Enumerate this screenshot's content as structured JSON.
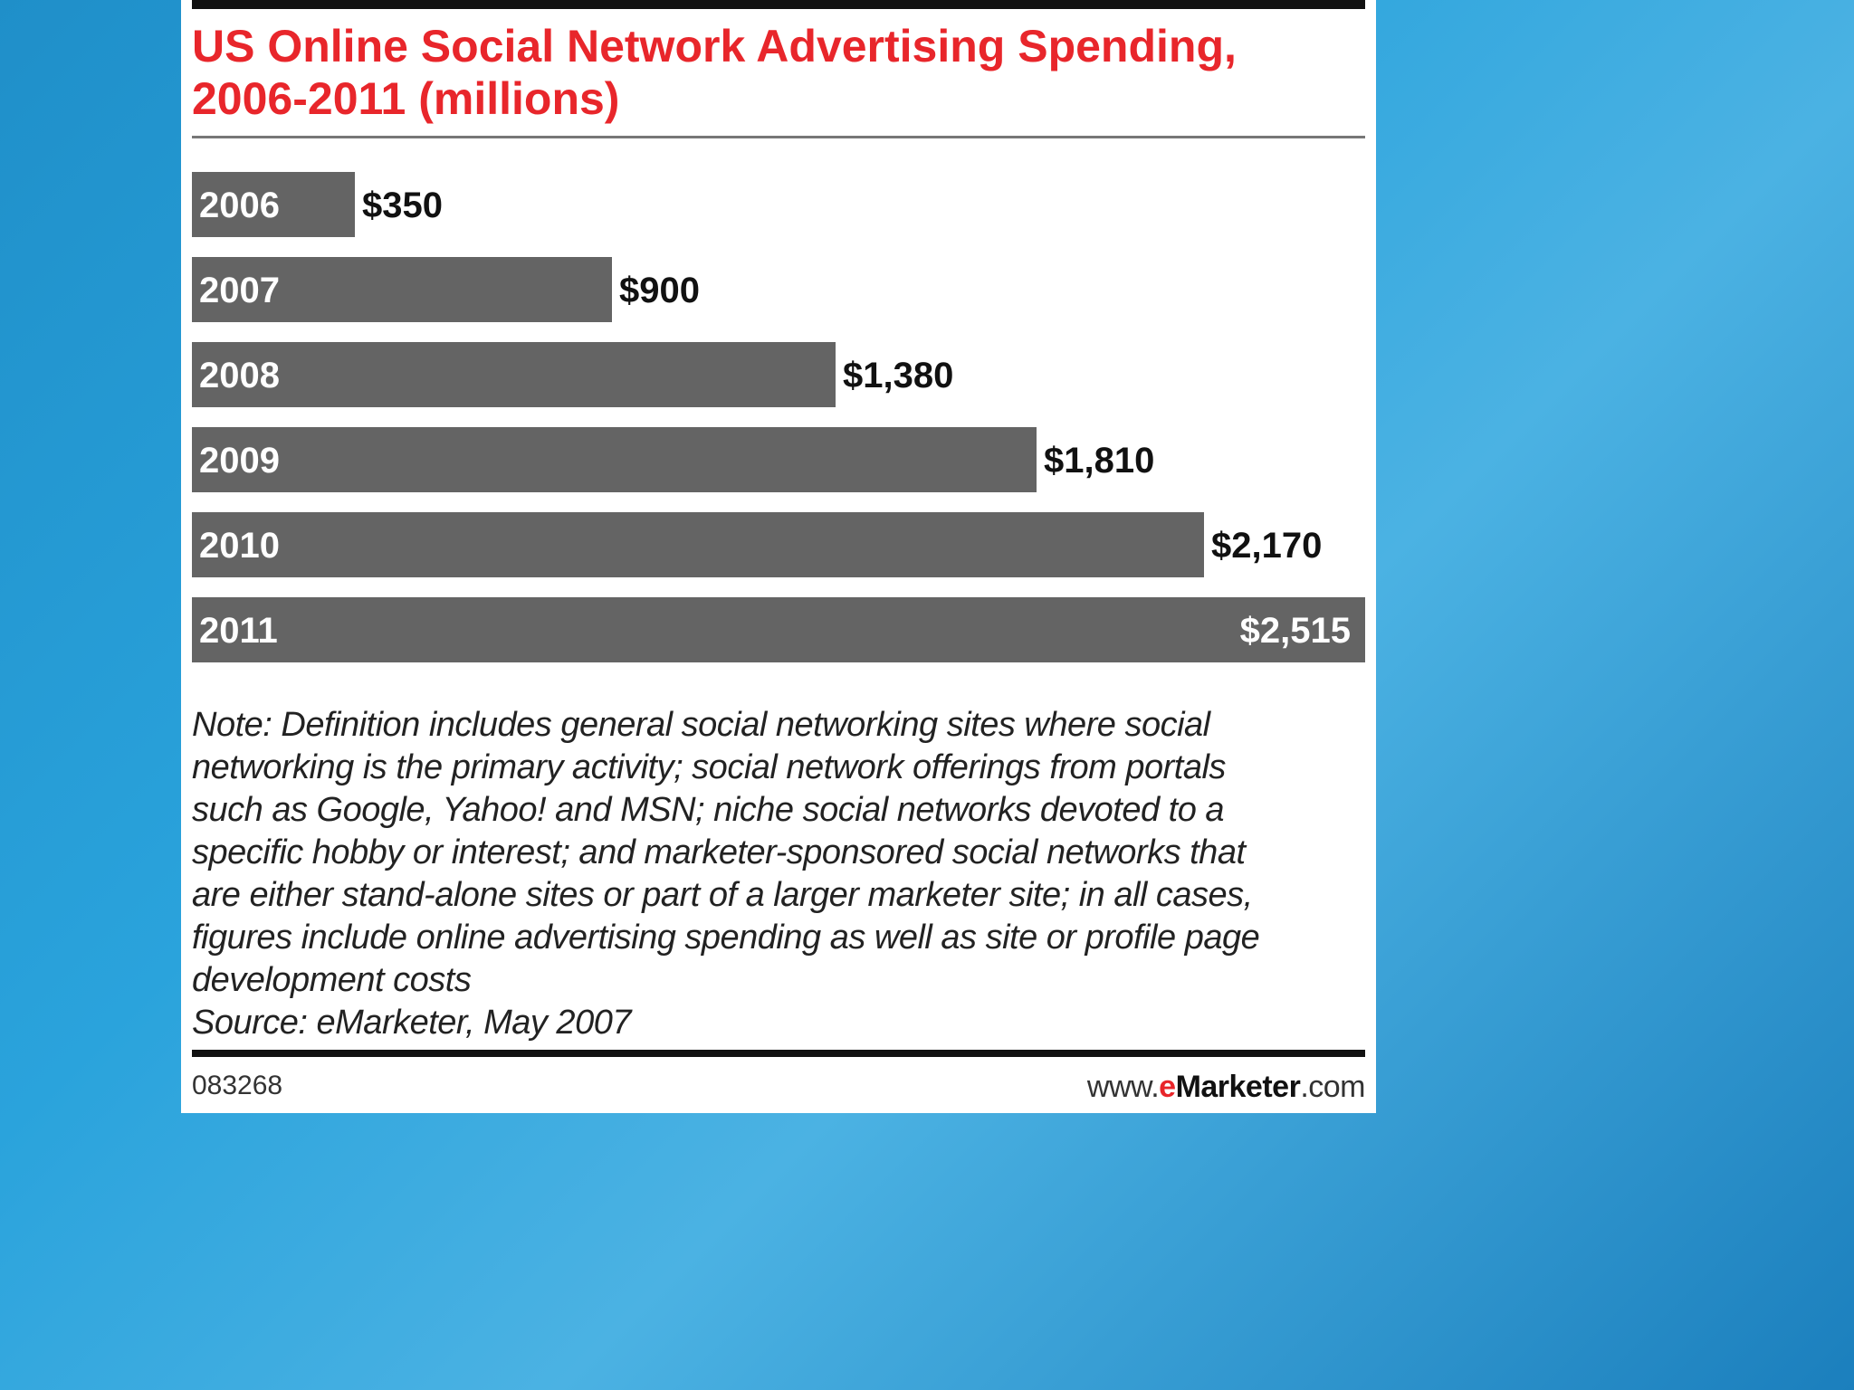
{
  "title_line1": "US Online Social Network Advertising Spending,",
  "title_line2": "2006-2011 (millions)",
  "chart_data": {
    "type": "bar",
    "orientation": "horizontal",
    "title": "US Online Social Network Advertising Spending, 2006-2011 (millions)",
    "xlabel": "",
    "ylabel": "",
    "xlim": [
      0,
      2515
    ],
    "categories": [
      "2006",
      "2007",
      "2008",
      "2009",
      "2010",
      "2011"
    ],
    "values": [
      350,
      900,
      1380,
      1810,
      2170,
      2515
    ],
    "labels": [
      "$350",
      "$900",
      "$1,380",
      "$1,810",
      "$2,170",
      "$2,515"
    ],
    "bar_color": "#646464"
  },
  "note_lines": [
    "Note: Definition includes general social networking sites where social",
    "networking is the primary activity; social network offerings from portals",
    "such as Google, Yahoo! and MSN; niche social networks devoted to a",
    "specific hobby or interest; and marketer-sponsored social networks that",
    "are either stand-alone sites or part of a larger marketer site; in all cases,",
    "figures include online advertising spending as well as site or profile page",
    "development costs"
  ],
  "source": "Source: eMarketer, May 2007",
  "footer_code": "083268",
  "footer_site_prefix": "www.",
  "footer_site_e": "e",
  "footer_site_brand": "Marketer",
  "footer_site_suffix": ".com",
  "colors": {
    "title": "#e8262b",
    "bar": "#646464",
    "panel": "#ffffff"
  }
}
